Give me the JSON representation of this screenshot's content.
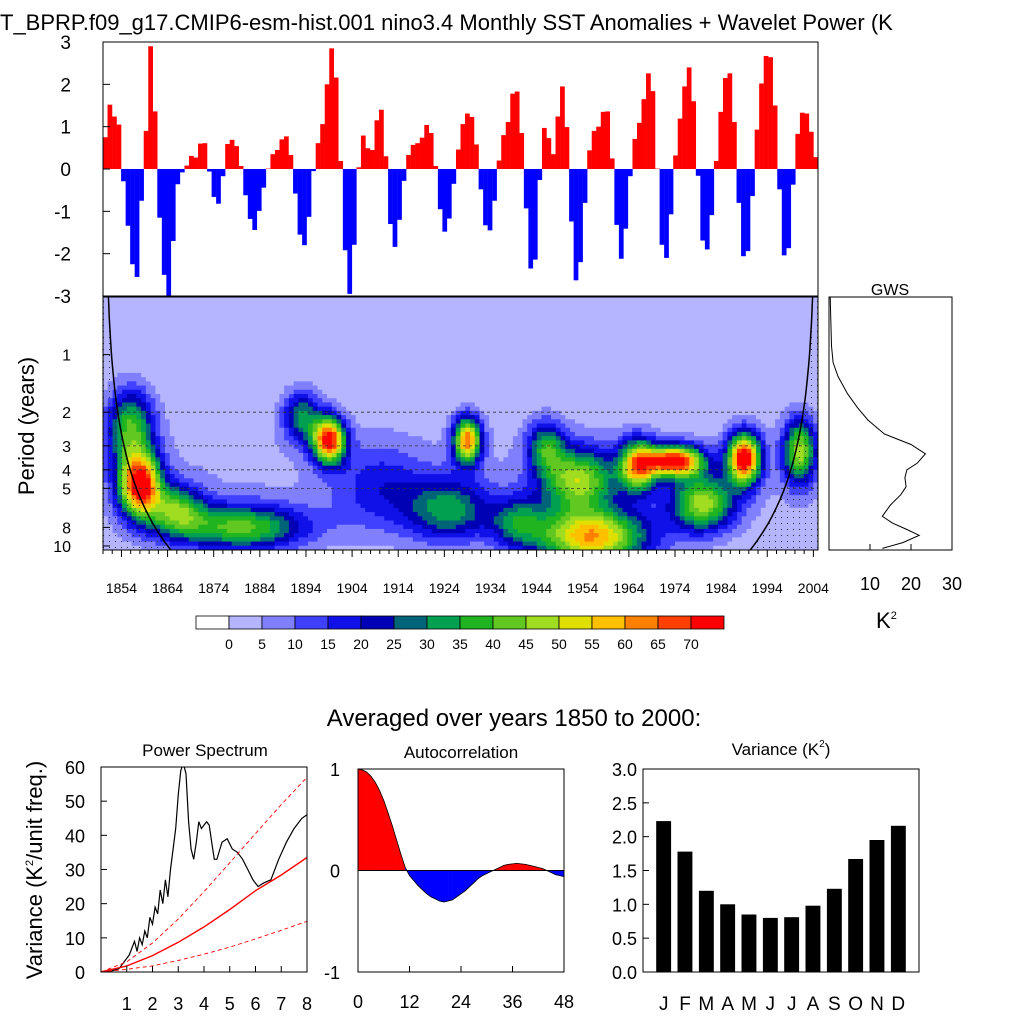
{
  "main_title": "T_BPRP.f09_g17.CMIP6-esm-hist.001 nino3.4 Monthly SST Anomalies + Wavelet Power (K",
  "ylabel_period": "Period (years)",
  "gws_title": "GWS",
  "gws_unit": "K",
  "gws_unit_sup": "2",
  "section_title": "Averaged over years 1850 to 2000:",
  "ylabel_variance": "Variance (K",
  "ylabel_variance_sup": "2",
  "ylabel_variance_end": "/unit freq.)",
  "colors": {
    "warm": "#ff0000",
    "cool": "#0000ff",
    "bar": "#000000"
  },
  "chart_data": [
    {
      "type": "bar",
      "name": "SST anomaly time series",
      "ylim": [
        -3,
        3
      ],
      "yticks": [
        "3",
        "2",
        "1",
        "0",
        "-1",
        "-2",
        "-3"
      ],
      "years_range": [
        1850,
        2005
      ],
      "values": [
        0.75,
        1.52,
        1.24,
        1.05,
        -0.29,
        -1.34,
        -2.25,
        -2.55,
        -0.75,
        0.9,
        2.9,
        1.36,
        -1.15,
        -2.5,
        -3.0,
        -1.7,
        -0.36,
        -0.08,
        0.08,
        0.31,
        0.27,
        0.6,
        0.61,
        -0.06,
        -0.66,
        -0.82,
        -0.17,
        0.59,
        0.69,
        0.54,
        0.07,
        -0.62,
        -1.18,
        -1.44,
        -0.99,
        -0.44,
        0.01,
        0.35,
        0.45,
        0.7,
        0.77,
        0.33,
        -0.58,
        -1.55,
        -1.8,
        -1.13,
        -0.05,
        0.61,
        1.06,
        2.0,
        2.85,
        2.16,
        0.19,
        -1.92,
        -2.95,
        -1.79,
        0.04,
        0.79,
        0.49,
        0.45,
        1.15,
        1.4,
        0.3,
        -1.3,
        -1.84,
        -1.2,
        -0.28,
        0.33,
        0.57,
        0.61,
        0.74,
        1.04,
        0.85,
        0.07,
        -0.95,
        -1.48,
        -1.17,
        -0.35,
        0.46,
        1.06,
        1.31,
        1.23,
        0.58,
        -0.48,
        -1.33,
        -1.45,
        -0.75,
        0.2,
        0.8,
        1.11,
        1.78,
        1.83,
        0.85,
        -0.93,
        -2.35,
        -2.14,
        -0.26,
        0.97,
        0.73,
        0.35,
        1.24,
        1.95,
        0.99,
        -1.24,
        -2.63,
        -2.2,
        -0.8,
        0.44,
        0.9,
        1.0,
        1.35,
        1.36,
        0.25,
        -1.32,
        -2.12,
        -1.41,
        -0.17,
        0.71,
        1.09,
        1.65,
        2.26,
        1.84,
        0.01,
        -1.79,
        -2.1,
        -1.07,
        0.32,
        1.19,
        1.95,
        2.4,
        1.6,
        -0.16,
        -1.69,
        -1.9,
        -1.09,
        0.19,
        1.35,
        2.15,
        2.26,
        1.11,
        -0.8,
        -2.06,
        -1.94,
        -0.64,
        0.93,
        2.02,
        2.67,
        2.64,
        1.5,
        -0.48,
        -2.04,
        -1.87,
        -0.37,
        0.83,
        1.33,
        1.31,
        0.88,
        0.28
      ]
    },
    {
      "type": "heatmap",
      "name": "Wavelet power",
      "ylabel": "Period (years)",
      "yticks": [
        "1",
        "2",
        "3",
        "4",
        "5",
        "8",
        "10"
      ],
      "xticks": [
        "1854",
        "1864",
        "1874",
        "1884",
        "1894",
        "1904",
        "1914",
        "1924",
        "1934",
        "1944",
        "1954",
        "1964",
        "1974",
        "1984",
        "1994",
        "2004"
      ],
      "xlim": [
        1850,
        2005
      ],
      "ylim_period": [
        0.5,
        10.5
      ],
      "colorbar_labels": [
        "0",
        "5",
        "10",
        "15",
        "20",
        "25",
        "30",
        "35",
        "40",
        "45",
        "50",
        "55",
        "60",
        "65",
        "70"
      ],
      "colorbar_colors": [
        "#ffffff",
        "#b4b4ff",
        "#8080ff",
        "#4040ff",
        "#1010e8",
        "#0000b4",
        "#006478",
        "#00a050",
        "#20b420",
        "#60c820",
        "#a0dc20",
        "#e0e000",
        "#ffc000",
        "#ff8000",
        "#ff4000",
        "#ff0000"
      ],
      "levels": [
        0,
        5,
        10,
        15,
        20,
        25,
        30,
        35,
        40,
        45,
        50,
        55,
        60,
        65,
        70
      ],
      "blobs": [
        {
          "year": 1858,
          "period": 4.8,
          "peak": 72,
          "spread_years": 4.5,
          "spread_log": 0.25
        },
        {
          "year": 1856,
          "period": 2.4,
          "peak": 38,
          "spread_years": 5,
          "spread_log": 0.3
        },
        {
          "year": 1899,
          "period": 2.8,
          "peak": 72,
          "spread_years": 3.5,
          "spread_log": 0.18
        },
        {
          "year": 1893,
          "period": 2.1,
          "peak": 30,
          "spread_years": 4,
          "spread_log": 0.2
        },
        {
          "year": 1880,
          "period": 8.0,
          "peak": 40,
          "spread_years": 14,
          "spread_log": 0.18
        },
        {
          "year": 1866,
          "period": 6.5,
          "peak": 35,
          "spread_years": 6,
          "spread_log": 0.2
        },
        {
          "year": 1929,
          "period": 2.8,
          "peak": 62,
          "spread_years": 3,
          "spread_log": 0.18
        },
        {
          "year": 1925,
          "period": 6.5,
          "peak": 30,
          "spread_years": 9,
          "spread_log": 0.25
        },
        {
          "year": 1956,
          "period": 9.0,
          "peak": 58,
          "spread_years": 12,
          "spread_log": 0.22
        },
        {
          "year": 1953,
          "period": 4.5,
          "peak": 45,
          "spread_years": 8,
          "spread_log": 0.25
        },
        {
          "year": 1974,
          "period": 3.6,
          "peak": 74,
          "spread_years": 6,
          "spread_log": 0.12
        },
        {
          "year": 1966,
          "period": 3.8,
          "peak": 55,
          "spread_years": 4,
          "spread_log": 0.2
        },
        {
          "year": 1989,
          "period": 3.5,
          "peak": 74,
          "spread_years": 3.5,
          "spread_log": 0.2
        },
        {
          "year": 1980,
          "period": 6.0,
          "peak": 45,
          "spread_years": 7,
          "spread_log": 0.22
        },
        {
          "year": 2001,
          "period": 3.2,
          "peak": 45,
          "spread_years": 3.5,
          "spread_log": 0.25
        },
        {
          "year": 1946,
          "period": 3.0,
          "peak": 30,
          "spread_years": 4,
          "spread_log": 0.2
        },
        {
          "year": 1940,
          "period": 7.5,
          "peak": 25,
          "spread_years": 6,
          "spread_log": 0.2
        },
        {
          "year": 1910,
          "period": 5.0,
          "peak": 15,
          "spread_years": 10,
          "spread_log": 0.35
        }
      ],
      "significance_periods": [
        2,
        3,
        4,
        5
      ],
      "coi_note": "cone of influence"
    },
    {
      "type": "line",
      "name": "GWS",
      "title": "GWS",
      "xticks": [
        "10",
        "20",
        "30"
      ],
      "xlim": [
        0,
        30
      ],
      "xlabel": "K",
      "points": [
        [
          0.3,
          0.5
        ],
        [
          0.6,
          0.9
        ],
        [
          1.0,
          1.1
        ],
        [
          2.2,
          1.3
        ],
        [
          4.5,
          1.6
        ],
        [
          7.0,
          1.9
        ],
        [
          9.5,
          2.2
        ],
        [
          13.5,
          2.6
        ],
        [
          20.0,
          2.95
        ],
        [
          23.5,
          3.3
        ],
        [
          21.5,
          3.7
        ],
        [
          19.0,
          4.0
        ],
        [
          18.5,
          4.4
        ],
        [
          18.8,
          4.9
        ],
        [
          17.5,
          5.4
        ],
        [
          15.0,
          6.1
        ],
        [
          13.0,
          7.0
        ],
        [
          15.5,
          7.6
        ],
        [
          19.0,
          8.2
        ],
        [
          22.0,
          8.8
        ],
        [
          18.0,
          9.6
        ],
        [
          13.0,
          10.3
        ]
      ]
    },
    {
      "type": "line",
      "title": "Power Spectrum",
      "xticks": [
        "1",
        "2",
        "3",
        "4",
        "5",
        "6",
        "7",
        "8"
      ],
      "yticks": [
        "0",
        "10",
        "20",
        "30",
        "40",
        "50",
        "60"
      ],
      "xlim": [
        0,
        8
      ],
      "ylim": [
        0,
        60
      ],
      "series": [
        {
          "values": [
            [
              0,
              0
            ],
            [
              0.4,
              0.3
            ],
            [
              0.7,
              1
            ],
            [
              0.9,
              3
            ],
            [
              1.1,
              5
            ],
            [
              1.3,
              9
            ],
            [
              1.4,
              6
            ],
            [
              1.5,
              10
            ],
            [
              1.6,
              8
            ],
            [
              1.7,
              12
            ],
            [
              1.8,
              10
            ],
            [
              1.9,
              16
            ],
            [
              2.0,
              14
            ],
            [
              2.1,
              19
            ],
            [
              2.2,
              17
            ],
            [
              2.3,
              24
            ],
            [
              2.4,
              20
            ],
            [
              2.5,
              27
            ],
            [
              2.6,
              22
            ],
            [
              2.7,
              30
            ],
            [
              2.8,
              36
            ],
            [
              2.9,
              42
            ],
            [
              3.0,
              52
            ],
            [
              3.1,
              59
            ],
            [
              3.2,
              61
            ],
            [
              3.3,
              58
            ],
            [
              3.4,
              44
            ],
            [
              3.5,
              36
            ],
            [
              3.6,
              33
            ],
            [
              3.7,
              38
            ],
            [
              3.8,
              44
            ],
            [
              3.9,
              42
            ],
            [
              4.0,
              43
            ],
            [
              4.1,
              44
            ],
            [
              4.2,
              43
            ],
            [
              4.3,
              38
            ],
            [
              4.4,
              33
            ],
            [
              4.5,
              33
            ],
            [
              4.7,
              38
            ],
            [
              4.9,
              39
            ],
            [
              5.1,
              36
            ],
            [
              5.3,
              35
            ],
            [
              5.5,
              33
            ],
            [
              5.7,
              30
            ],
            [
              5.9,
              27
            ],
            [
              6.1,
              25
            ],
            [
              6.3,
              26
            ],
            [
              6.6,
              27
            ],
            [
              6.9,
              33
            ],
            [
              7.2,
              38
            ],
            [
              7.5,
              42
            ],
            [
              7.8,
              45
            ],
            [
              8.0,
              46
            ]
          ]
        },
        {
          "values": [
            [
              0,
              0
            ],
            [
              1,
              1.8
            ],
            [
              2,
              4.8
            ],
            [
              3,
              8.7
            ],
            [
              4,
              13.2
            ],
            [
              5,
              18.3
            ],
            [
              6,
              23.8
            ],
            [
              7,
              28.4
            ],
            [
              8,
              33.5
            ]
          ]
        },
        {
          "values": [
            [
              0,
              0
            ],
            [
              1,
              3.0
            ],
            [
              2,
              8.5
            ],
            [
              3,
              15.5
            ],
            [
              4,
              23.5
            ],
            [
              5,
              32
            ],
            [
              6,
              40.5
            ],
            [
              7,
              49
            ],
            [
              8,
              57
            ]
          ]
        },
        {
          "values": [
            [
              0,
              0
            ],
            [
              1,
              0.8
            ],
            [
              2,
              1.8
            ],
            [
              3,
              3.4
            ],
            [
              4,
              5.2
            ],
            [
              5,
              7.3
            ],
            [
              6,
              9.7
            ],
            [
              7,
              12.2
            ],
            [
              8,
              14.8
            ]
          ]
        }
      ]
    },
    {
      "type": "area",
      "title": "Autocorrelation",
      "xticks": [
        "0",
        "12",
        "24",
        "36",
        "48"
      ],
      "yticks": [
        "1",
        "0",
        "-1"
      ],
      "xlim": [
        0,
        48
      ],
      "ylim": [
        -1,
        1
      ],
      "values": [
        [
          0,
          1.0
        ],
        [
          1,
          0.99
        ],
        [
          2,
          0.97
        ],
        [
          3,
          0.93
        ],
        [
          4,
          0.87
        ],
        [
          5,
          0.79
        ],
        [
          6,
          0.69
        ],
        [
          7,
          0.57
        ],
        [
          8,
          0.44
        ],
        [
          9,
          0.3
        ],
        [
          10,
          0.16
        ],
        [
          11,
          0.03
        ],
        [
          12,
          -0.05
        ],
        [
          13,
          -0.1
        ],
        [
          14,
          -0.15
        ],
        [
          15,
          -0.19
        ],
        [
          16,
          -0.23
        ],
        [
          17,
          -0.26
        ],
        [
          18,
          -0.28
        ],
        [
          19,
          -0.3
        ],
        [
          20,
          -0.31
        ],
        [
          21,
          -0.3
        ],
        [
          22,
          -0.29
        ],
        [
          23,
          -0.26
        ],
        [
          24,
          -0.23
        ],
        [
          25,
          -0.2
        ],
        [
          26,
          -0.16
        ],
        [
          27,
          -0.12
        ],
        [
          28,
          -0.08
        ],
        [
          29,
          -0.05
        ],
        [
          30,
          -0.03
        ],
        [
          31,
          -0.01
        ],
        [
          32,
          0.01
        ],
        [
          33,
          0.03
        ],
        [
          34,
          0.05
        ],
        [
          35,
          0.06
        ],
        [
          36,
          0.065
        ],
        [
          37,
          0.07
        ],
        [
          38,
          0.065
        ],
        [
          39,
          0.06
        ],
        [
          40,
          0.05
        ],
        [
          41,
          0.04
        ],
        [
          42,
          0.03
        ],
        [
          43,
          0.02
        ],
        [
          44,
          0.0
        ],
        [
          45,
          -0.02
        ],
        [
          46,
          -0.04
        ],
        [
          47,
          -0.05
        ],
        [
          48,
          -0.06
        ]
      ]
    },
    {
      "type": "bar",
      "title": "Variance (K",
      "title_sup": "2",
      "title_end": ")",
      "categories": [
        "J",
        "F",
        "M",
        "A",
        "M",
        "J",
        "J",
        "A",
        "S",
        "O",
        "N",
        "D"
      ],
      "values": [
        2.23,
        1.78,
        1.2,
        1.0,
        0.85,
        0.8,
        0.81,
        0.98,
        1.23,
        1.67,
        1.95,
        2.16
      ],
      "yticks": [
        "3.0",
        "2.5",
        "2.0",
        "1.5",
        "1.0",
        "0.5",
        "0.0"
      ],
      "ylim": [
        0,
        3
      ]
    }
  ]
}
